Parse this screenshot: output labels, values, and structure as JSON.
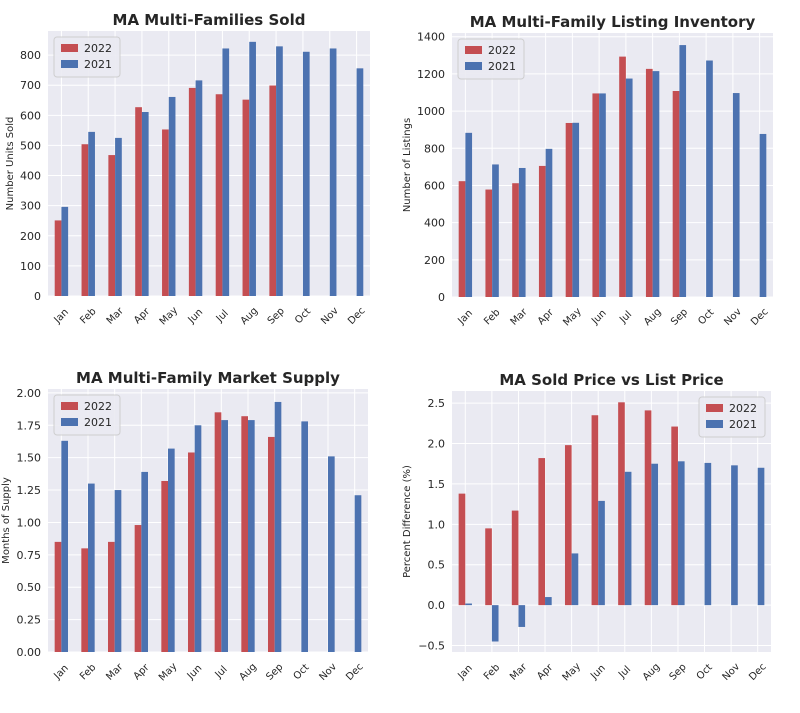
{
  "colors": {
    "y2022": "#c44e52",
    "y2021": "#4c72b0",
    "plot_bg": "#eaeaf2",
    "grid": "#ffffff"
  },
  "chart_data": [
    {
      "type": "bar",
      "title": "MA Multi-Families Sold",
      "ylabel": "Number Units Sold",
      "xlabel": "",
      "categories": [
        "Jan",
        "Feb",
        "Mar",
        "Apr",
        "May",
        "Jun",
        "Jul",
        "Aug",
        "Sep",
        "Oct",
        "Nov",
        "Dec"
      ],
      "series": [
        {
          "name": "2022",
          "values": [
            251,
            504,
            468,
            627,
            553,
            691,
            670,
            652,
            699,
            null,
            null,
            null
          ]
        },
        {
          "name": "2021",
          "values": [
            296,
            545,
            525,
            611,
            661,
            716,
            822,
            844,
            829,
            811,
            822,
            756
          ]
        }
      ],
      "ylim": [
        0,
        880
      ],
      "yticks": [
        0,
        100,
        200,
        300,
        400,
        500,
        600,
        700,
        800
      ],
      "ytick_labels": [
        "0",
        "100",
        "200",
        "300",
        "400",
        "500",
        "600",
        "700",
        "800"
      ],
      "legend": "top-left",
      "grid": true
    },
    {
      "type": "bar",
      "title": "MA Multi-Family Listing Inventory",
      "ylabel": "Number of Listings",
      "xlabel": "",
      "categories": [
        "Jan",
        "Feb",
        "Mar",
        "Apr",
        "May",
        "Jun",
        "Jul",
        "Aug",
        "Sep",
        "Oct",
        "Nov",
        "Dec"
      ],
      "series": [
        {
          "name": "2022",
          "values": [
            623,
            578,
            612,
            705,
            936,
            1095,
            1293,
            1227,
            1108,
            null,
            null,
            null
          ]
        },
        {
          "name": "2021",
          "values": [
            883,
            713,
            694,
            797,
            937,
            1095,
            1175,
            1215,
            1355,
            1272,
            1097,
            877
          ]
        }
      ],
      "ylim": [
        0,
        1420
      ],
      "yticks": [
        0,
        200,
        400,
        600,
        800,
        1000,
        1200,
        1400
      ],
      "ytick_labels": [
        "0",
        "200",
        "400",
        "600",
        "800",
        "1000",
        "1200",
        "1400"
      ],
      "legend": "top-left",
      "grid": true
    },
    {
      "type": "bar",
      "title": "MA Multi-Family Market Supply",
      "ylabel": "Months of Supply",
      "xlabel": "",
      "categories": [
        "Jan",
        "Feb",
        "Mar",
        "Apr",
        "May",
        "Jun",
        "Jul",
        "Aug",
        "Sep",
        "Oct",
        "Nov",
        "Dec"
      ],
      "series": [
        {
          "name": "2022",
          "values": [
            0.85,
            0.8,
            0.85,
            0.98,
            1.32,
            1.54,
            1.85,
            1.82,
            1.66,
            null,
            null,
            null
          ]
        },
        {
          "name": "2021",
          "values": [
            1.63,
            1.3,
            1.25,
            1.39,
            1.57,
            1.75,
            1.79,
            1.79,
            1.93,
            1.78,
            1.51,
            1.21
          ]
        }
      ],
      "ylim": [
        0,
        2.03
      ],
      "yticks": [
        0,
        0.25,
        0.5,
        0.75,
        1.0,
        1.25,
        1.5,
        1.75,
        2.0
      ],
      "ytick_labels": [
        "0.00",
        "0.25",
        "0.50",
        "0.75",
        "1.00",
        "1.25",
        "1.50",
        "1.75",
        "2.00"
      ],
      "legend": "top-left",
      "grid": true
    },
    {
      "type": "bar",
      "title": "MA Sold Price vs List Price",
      "ylabel": "Percent Difference (%)",
      "xlabel": "",
      "categories": [
        "Jan",
        "Feb",
        "Mar",
        "Apr",
        "May",
        "Jun",
        "Jul",
        "Aug",
        "Sep",
        "Oct",
        "Nov",
        "Dec"
      ],
      "series": [
        {
          "name": "2022",
          "values": [
            1.38,
            0.95,
            1.17,
            1.82,
            1.98,
            2.35,
            2.51,
            2.41,
            2.21,
            null,
            null,
            null
          ]
        },
        {
          "name": "2021",
          "values": [
            0.02,
            -0.45,
            -0.27,
            0.1,
            0.64,
            1.29,
            1.65,
            1.75,
            1.78,
            1.76,
            1.73,
            1.7
          ]
        }
      ],
      "ylim": [
        -0.58,
        2.65
      ],
      "yticks": [
        -0.5,
        0,
        0.5,
        1.0,
        1.5,
        2.0,
        2.5
      ],
      "ytick_labels": [
        "−0.5",
        "0.0",
        "0.5",
        "1.0",
        "1.5",
        "2.0",
        "2.5"
      ],
      "legend": "top-right",
      "grid": true
    }
  ]
}
